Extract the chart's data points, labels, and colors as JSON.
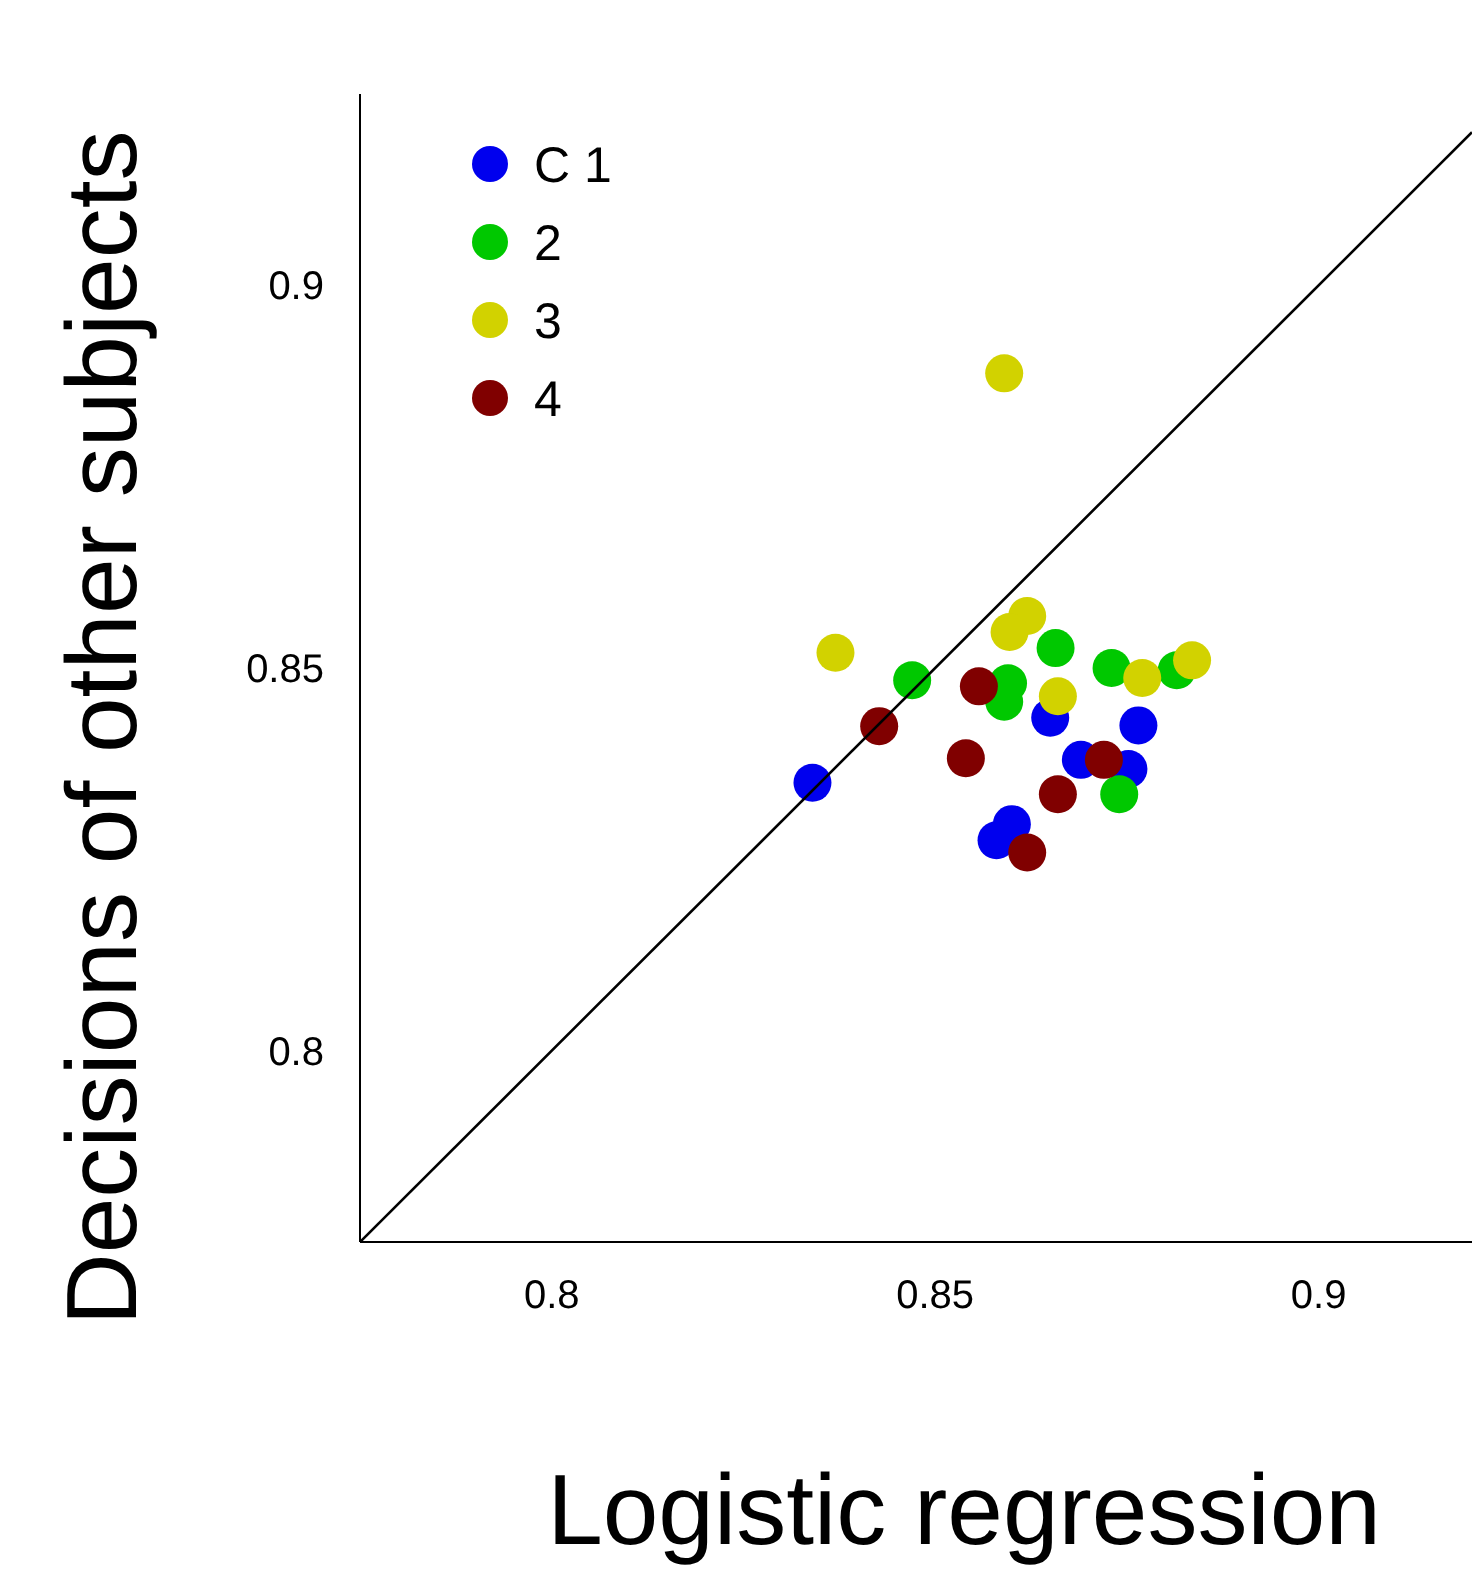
{
  "chart_data": {
    "type": "scatter",
    "xlabel": "Logistic regression",
    "ylabel": "Decisions of other subjects",
    "xlim": [
      0.775,
      0.92
    ],
    "ylim": [
      0.775,
      0.925
    ],
    "xticks": [
      0.8,
      0.85,
      0.9
    ],
    "yticks": [
      0.8,
      0.85,
      0.9
    ],
    "grid": false,
    "legend": "top left",
    "marker": "circle",
    "series": [
      {
        "name": "C 1",
        "color": "#0000ee",
        "x": [
          0.834,
          0.865,
          0.8765,
          0.869,
          0.8752,
          0.86,
          0.858
        ],
        "values": [
          0.835,
          0.8435,
          0.8425,
          0.838,
          0.8368,
          0.8296,
          0.8275
        ]
      },
      {
        "name": "2",
        "color": "#00c800",
        "x": [
          0.847,
          0.8595,
          0.859,
          0.8657,
          0.873,
          0.8815,
          0.874
        ],
        "values": [
          0.8484,
          0.848,
          0.8456,
          0.8526,
          0.85,
          0.8497,
          0.8335
        ]
      },
      {
        "name": "3",
        "color": "#d2d200",
        "x": [
          0.859,
          0.837,
          0.862,
          0.8597,
          0.866,
          0.877,
          0.8835
        ],
        "values": [
          0.8885,
          0.852,
          0.8568,
          0.8547,
          0.8463,
          0.8487,
          0.851
        ]
      },
      {
        "name": "4",
        "color": "#800000",
        "x": [
          0.8427,
          0.8557,
          0.854,
          0.872,
          0.866,
          0.862
        ],
        "values": [
          0.8424,
          0.8476,
          0.8382,
          0.838,
          0.8335,
          0.8259
        ]
      },
      {
        "type": "line",
        "color": "#000000",
        "marker": "none",
        "x": [
          0.775,
          0.92
        ],
        "values": [
          0.775,
          0.92
        ]
      }
    ]
  }
}
